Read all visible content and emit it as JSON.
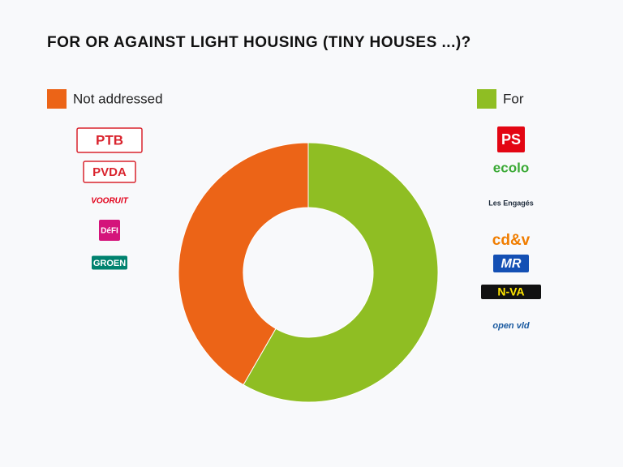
{
  "chart_data": {
    "type": "donut",
    "title": "FOR OR AGAINST LIGHT HOUSING (TINY HOUSES ...)?",
    "categories": [
      "Not addressed",
      "For"
    ],
    "values": [
      5,
      7
    ],
    "colors": [
      "#ec6417",
      "#8fbe23"
    ],
    "party_lists": [
      [
        "PTB",
        "PVDA",
        "VOORUIT",
        "DéFI",
        "GROEN"
      ],
      [
        "PS",
        "ecolo",
        "Les Engagés",
        "cd&v",
        "MR",
        "N-VA",
        "open vld"
      ]
    ]
  }
}
